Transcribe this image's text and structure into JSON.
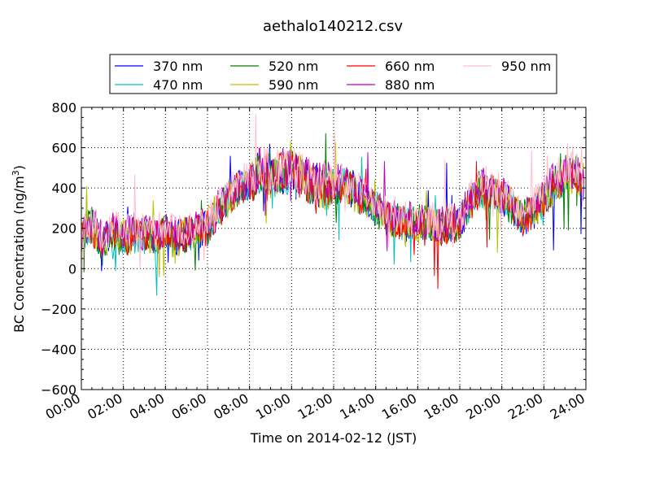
{
  "chart_data": {
    "type": "line",
    "title": "aethalo140212.csv",
    "xlabel": "Time on 2014-02-12 (JST)",
    "ylabel_main": "BC Concentration (ng/m",
    "ylabel_sup": "3",
    "ylabel_end": ")",
    "xlim": [
      0,
      24
    ],
    "ylim": [
      -600,
      800
    ],
    "grid": true,
    "legend_position": "top",
    "x_ticks": [
      0,
      2,
      4,
      6,
      8,
      10,
      12,
      14,
      16,
      18,
      20,
      22,
      24
    ],
    "x_tick_labels": [
      "00:00",
      "02:00",
      "04:00",
      "06:00",
      "08:00",
      "10:00",
      "12:00",
      "14:00",
      "16:00",
      "18:00",
      "20:00",
      "22:00",
      "24:00"
    ],
    "y_ticks": [
      -600,
      -400,
      -200,
      0,
      200,
      400,
      600,
      800
    ],
    "y_tick_labels": [
      "−600",
      "−400",
      "−200",
      "0",
      "200",
      "400",
      "600",
      "800"
    ],
    "x": [
      0,
      0.5,
      1,
      1.5,
      2,
      2.5,
      3,
      3.5,
      4,
      4.5,
      5,
      5.5,
      6,
      6.5,
      7,
      7.5,
      8,
      8.5,
      9,
      9.5,
      10,
      10.5,
      11,
      11.5,
      12,
      12.5,
      13,
      13.5,
      14,
      14.5,
      15,
      15.5,
      16,
      16.5,
      17,
      17.5,
      18,
      18.5,
      19,
      19.5,
      20,
      20.5,
      21,
      21.5,
      22,
      22.5,
      23,
      23.5,
      23.9
    ],
    "series": [
      {
        "name": "370 nm",
        "color": "#0000ff",
        "values": [
          150,
          220,
          120,
          180,
          140,
          170,
          160,
          150,
          180,
          150,
          170,
          190,
          200,
          280,
          350,
          400,
          420,
          480,
          460,
          470,
          480,
          450,
          420,
          410,
          400,
          420,
          380,
          350,
          300,
          250,
          240,
          220,
          220,
          230,
          200,
          210,
          220,
          330,
          400,
          380,
          360,
          300,
          250,
          280,
          350,
          420,
          450,
          470,
          420
        ]
      },
      {
        "name": "470 nm",
        "color": "#00bfbf",
        "values": [
          160,
          210,
          110,
          170,
          150,
          160,
          150,
          160,
          170,
          140,
          160,
          180,
          210,
          290,
          340,
          410,
          430,
          470,
          450,
          480,
          470,
          440,
          430,
          400,
          410,
          410,
          370,
          340,
          310,
          260,
          230,
          230,
          210,
          220,
          190,
          220,
          230,
          320,
          390,
          370,
          350,
          310,
          240,
          290,
          340,
          410,
          440,
          460,
          410
        ]
      },
      {
        "name": "520 nm",
        "color": "#008000",
        "values": [
          140,
          230,
          100,
          190,
          130,
          180,
          150,
          140,
          190,
          160,
          160,
          200,
          190,
          270,
          360,
          390,
          410,
          490,
          470,
          460,
          490,
          460,
          410,
          420,
          390,
          430,
          390,
          360,
          290,
          240,
          250,
          210,
          230,
          240,
          210,
          200,
          210,
          340,
          410,
          390,
          370,
          290,
          260,
          270,
          360,
          430,
          460,
          480,
          430
        ]
      },
      {
        "name": "590 nm",
        "color": "#bfbf00",
        "values": [
          170,
          200,
          130,
          160,
          160,
          150,
          170,
          160,
          160,
          130,
          180,
          170,
          220,
          300,
          330,
          420,
          400,
          500,
          450,
          480,
          470,
          470,
          440,
          390,
          420,
          400,
          360,
          340,
          320,
          260,
          220,
          240,
          210,
          220,
          180,
          230,
          240,
          310,
          380,
          360,
          350,
          320,
          230,
          300,
          330,
          400,
          430,
          450,
          440
        ]
      },
      {
        "name": "660 nm",
        "color": "#ff0000",
        "values": [
          150,
          210,
          120,
          170,
          140,
          170,
          160,
          150,
          180,
          150,
          170,
          190,
          200,
          280,
          350,
          400,
          420,
          480,
          460,
          470,
          480,
          450,
          420,
          410,
          400,
          420,
          380,
          350,
          300,
          250,
          240,
          220,
          220,
          230,
          200,
          210,
          220,
          330,
          400,
          380,
          360,
          300,
          250,
          280,
          350,
          420,
          450,
          470,
          420
        ]
      },
      {
        "name": "880 nm",
        "color": "#bf00bf",
        "values": [
          180,
          240,
          140,
          200,
          170,
          190,
          180,
          170,
          200,
          170,
          190,
          210,
          230,
          300,
          370,
          420,
          440,
          500,
          480,
          490,
          500,
          470,
          440,
          430,
          420,
          440,
          400,
          370,
          320,
          270,
          260,
          240,
          240,
          250,
          220,
          230,
          240,
          350,
          420,
          400,
          380,
          320,
          270,
          300,
          370,
          440,
          470,
          490,
          440
        ]
      },
      {
        "name": "950 nm",
        "color": "#ffc0cb",
        "values": [
          190,
          250,
          150,
          210,
          180,
          200,
          190,
          180,
          210,
          180,
          200,
          220,
          240,
          310,
          380,
          430,
          450,
          510,
          490,
          500,
          510,
          480,
          450,
          440,
          430,
          450,
          410,
          380,
          330,
          280,
          270,
          250,
          250,
          260,
          230,
          240,
          250,
          360,
          430,
          410,
          390,
          330,
          280,
          310,
          380,
          450,
          480,
          500,
          450
        ]
      }
    ]
  }
}
